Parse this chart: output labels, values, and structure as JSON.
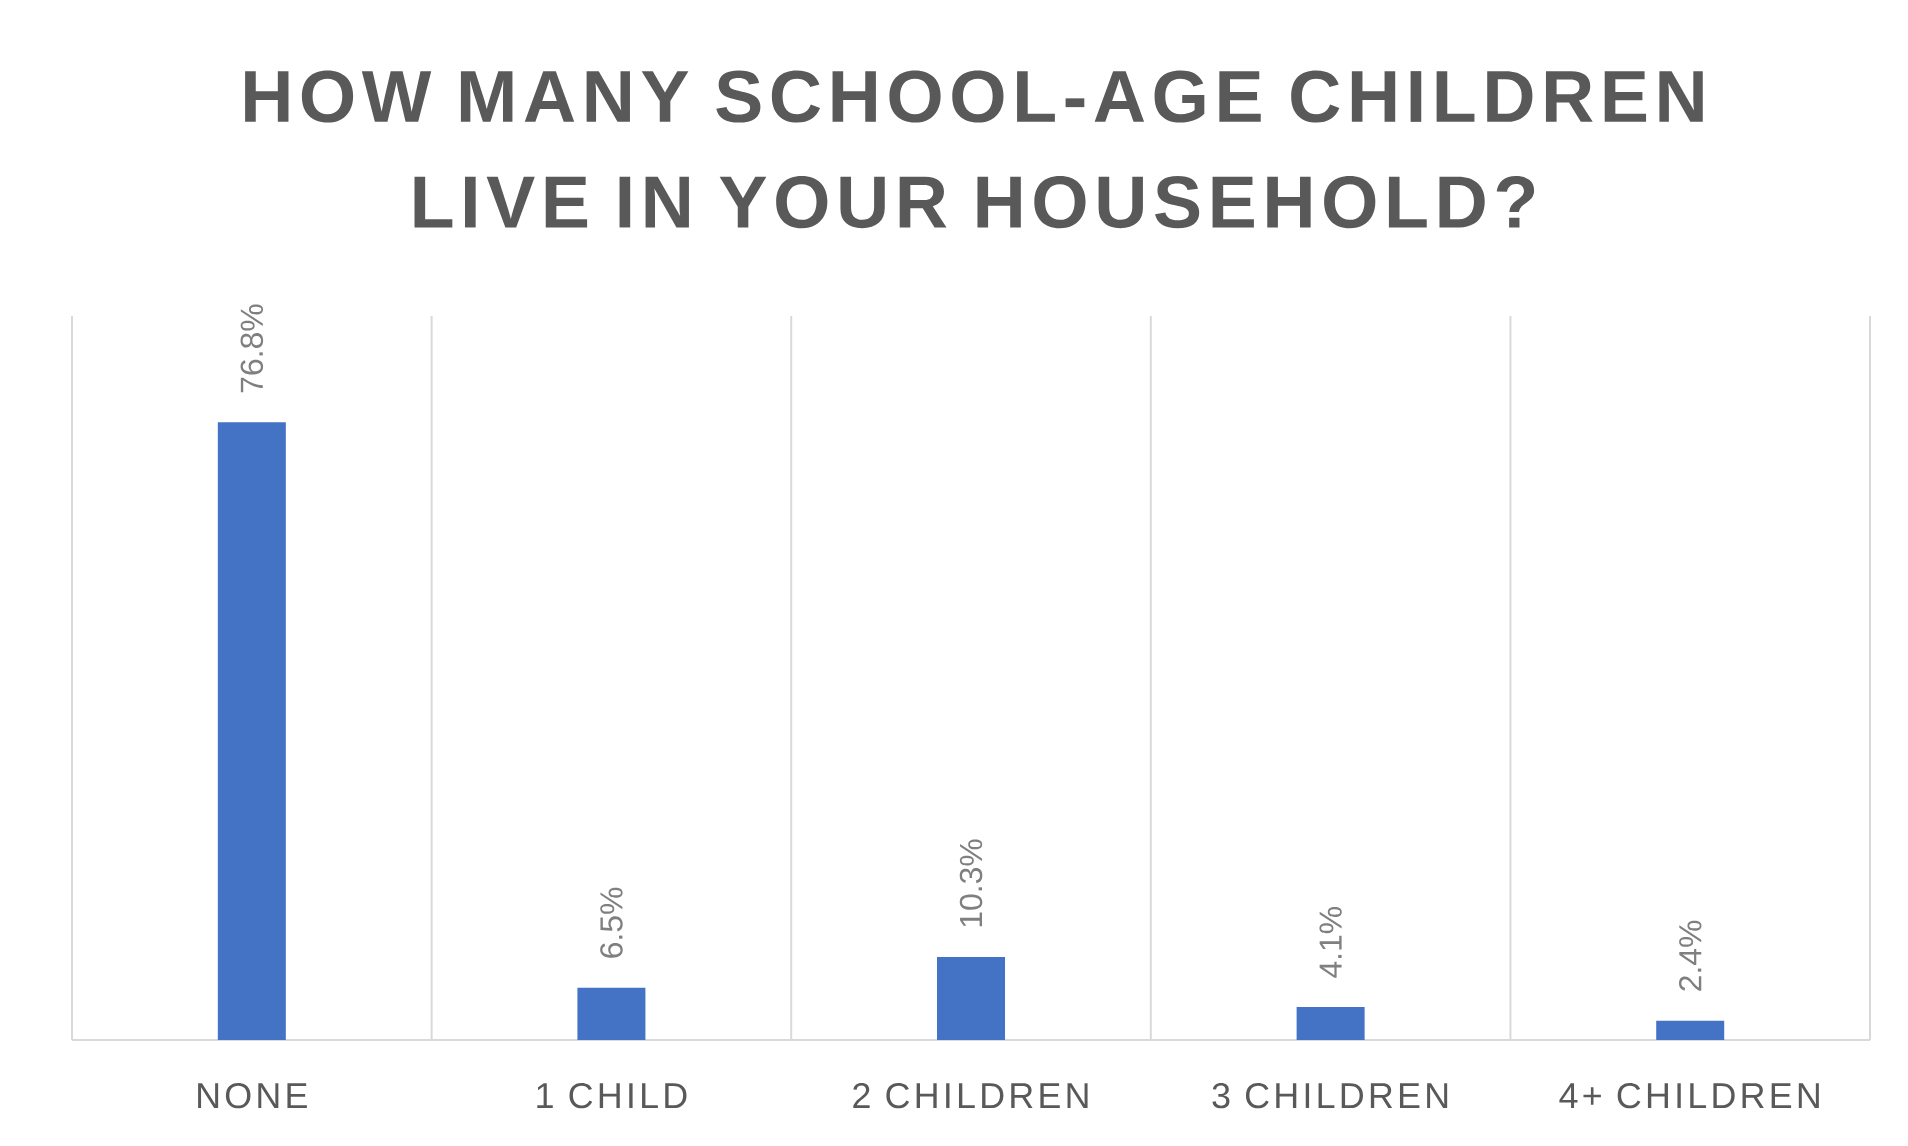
{
  "chart_data": {
    "type": "bar",
    "title": "HOW MANY SCHOOL-AGE CHILDREN LIVE IN YOUR HOUSEHOLD?",
    "categories": [
      "NONE",
      "1 CHILD",
      "2 CHILDREN",
      "3 CHILDREN",
      "4+ CHILDREN"
    ],
    "values": [
      76.8,
      6.5,
      10.3,
      4.1,
      2.4
    ],
    "value_labels": [
      "76.8%",
      "6.5%",
      "10.3%",
      "4.1%",
      "2.4%"
    ],
    "color": "#4472c4",
    "ylim": [
      0,
      90
    ],
    "grid": "x",
    "tick_labels": "x"
  }
}
